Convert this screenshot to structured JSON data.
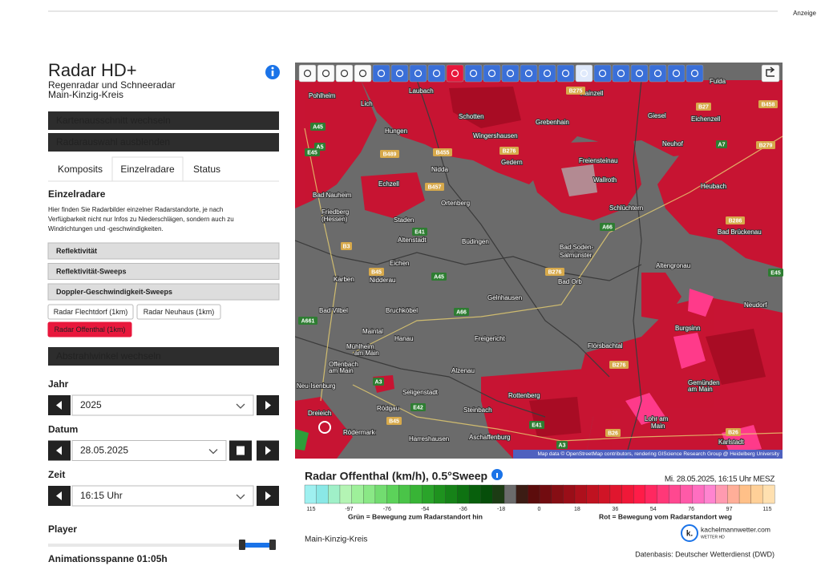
{
  "top": {
    "ad_label": "Anzeige"
  },
  "sidebar": {
    "title": "Radar HD+",
    "subtitle": [
      "Regenradar und Schneeradar",
      "Main-Kinzig-Kreis"
    ],
    "buttons": [
      "Kartenausschnitt wechseln",
      "Radarauswahl ausblenden"
    ],
    "tabs": [
      "Komposits",
      "Einzelradare",
      "Status"
    ],
    "active_tab": 1,
    "section_heading": "Einzelradare",
    "description": [
      "Hier finden Sie Radarbilder einzelner Radarstandorte, je nach",
      "Verfügbarkeit nicht nur Infos zu Niederschlägen, sondern auch zu",
      "Windrichtungen und -geschwindigkeiten."
    ],
    "products": [
      "Reflektivität",
      "Reflektivität-Sweeps",
      "Doppler-Geschwindigkeit-Sweeps"
    ],
    "radars": [
      "Radar Flechtdorf (1km)",
      "Radar Neuhaus (1km)",
      "Radar Offenthal (1km)"
    ],
    "selected_radar": 2,
    "angle_button": "Abstrahlwinkel wechseln",
    "fields": [
      {
        "label": "Jahr",
        "value": "2025"
      },
      {
        "label": "Datum",
        "value": "28.05.2025"
      },
      {
        "label": "Zeit",
        "value": "16:15 Uhr"
      }
    ],
    "player_label": "Player",
    "animation": "Animationsspanne 01:05h"
  },
  "map": {
    "labels": [
      "Pohlheim",
      "Lich",
      "Laubach",
      "Schotten",
      "Hainzell",
      "Fulda",
      "Giesel",
      "Eichenzell",
      "Hungen",
      "Grebenhain",
      "Wingershausen",
      "Neuhof",
      "Nidda",
      "Gedern",
      "Freiensteinau",
      "Echzell",
      "Wallroth",
      "Heubach",
      "Bad Nauheim",
      "Ortenberg",
      "Schlüchtern",
      "Friedberg",
      "(Hessen)",
      "Staden",
      "Bad Brückenau",
      "Altenstadt",
      "Büdingen",
      "Bad Soden-",
      "Salmünster",
      "Altengronau",
      "Eichen",
      "Karben",
      "Nidderau",
      "Bad Orb",
      "Gelnhausen",
      "Neudorf",
      "Bad Vilbel",
      "Bruchköbel",
      "Maintal",
      "Hanau",
      "Freigericht",
      "Burgsinn",
      "Flörsbachtal",
      "Mühlheim",
      "am Main",
      "Offenbach",
      "am Main",
      "Alzenau",
      "Gemünden",
      "am Main",
      "Seligenstadt",
      "Rottenberg",
      "Neu-Isenburg",
      "Dreieich",
      "Rödgau",
      "Steinbach",
      "Lohr am",
      "Main",
      "Rödermark",
      "Harreshausen",
      "Aschaffenburg",
      "Karlstadt"
    ],
    "shields": [
      "B275",
      "B27",
      "B458",
      "A45",
      "A5",
      "B489",
      "B455",
      "B276",
      "B457",
      "A7",
      "B279",
      "A66",
      "B286",
      "E41",
      "B3",
      "B45",
      "A45",
      "E45",
      "A661",
      "B276",
      "A66",
      "B276",
      "A3",
      "E42",
      "B45",
      "E41",
      "B26",
      "B26",
      "A3",
      "E45"
    ],
    "attribution": "Map data © OpenStreetMap contributors, rendering GIScience Research Group @ Heidelberg University"
  },
  "legend": {
    "title": "Radar Offenthal (km/h), 0.5°Sweep",
    "timestamp": "Mi. 28.05.2025, 16:15 Uhr MESZ",
    "ticks": [
      "115",
      "-97",
      "-76",
      "-54",
      "-36",
      "-18",
      "0",
      "18",
      "36",
      "54",
      "76",
      "97",
      "115"
    ],
    "left_caption": "Grün = Bewegung zum Radarstandort hin",
    "right_caption": "Rot = Bewegung vom Radarstandort weg",
    "brand": "kachelmannwetter.com",
    "brand_sub": "WETTER HD",
    "brand_icon": "k.",
    "region": "Main-Kinzig-Kreis",
    "source": "Datenbasis: Deutscher Wetterdienst (DWD)"
  }
}
